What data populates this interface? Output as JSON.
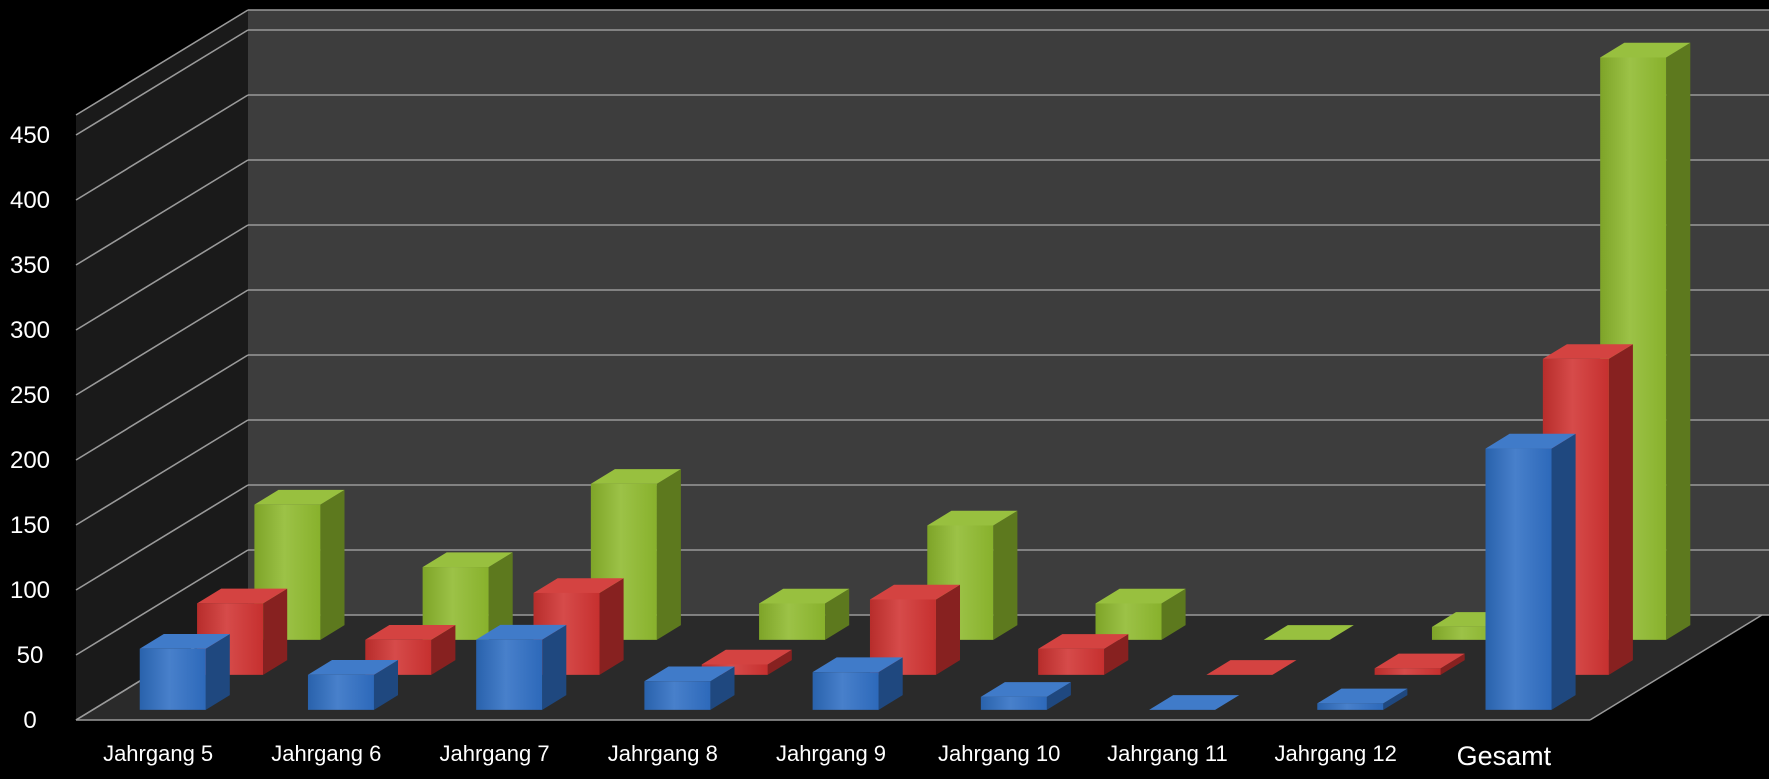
{
  "chart_data": {
    "type": "bar",
    "style": "3d-clustered-depth",
    "title": "",
    "xlabel": "",
    "ylabel": "",
    "ylim": [
      0,
      450
    ],
    "yticks": [
      0,
      50,
      100,
      150,
      200,
      250,
      300,
      350,
      400,
      450
    ],
    "grid": true,
    "legend": "none",
    "categories": [
      "Jahrgang 5",
      "Jahrgang 6",
      "Jahrgang 7",
      "Jahrgang 8",
      "Jahrgang 9",
      "Jahrgang 10",
      "Jahrgang 11",
      "Jahrgang 12",
      "Gesamt"
    ],
    "series": [
      {
        "color": "#2f6fc4",
        "values": [
          47,
          27,
          54,
          22,
          29,
          10,
          0,
          5,
          201
        ]
      },
      {
        "color": "#d03331",
        "values": [
          55,
          27,
          63,
          8,
          58,
          20,
          0,
          5,
          243
        ]
      },
      {
        "color": "#8fba2e",
        "values": [
          104,
          56,
          120,
          28,
          88,
          28,
          0,
          10,
          448
        ]
      }
    ],
    "colors": {
      "background": "#000000",
      "wall": "#3d3d3d",
      "floor": "#2a2a2a",
      "gridline": "#9a9a9a",
      "text": "#ffffff"
    }
  }
}
